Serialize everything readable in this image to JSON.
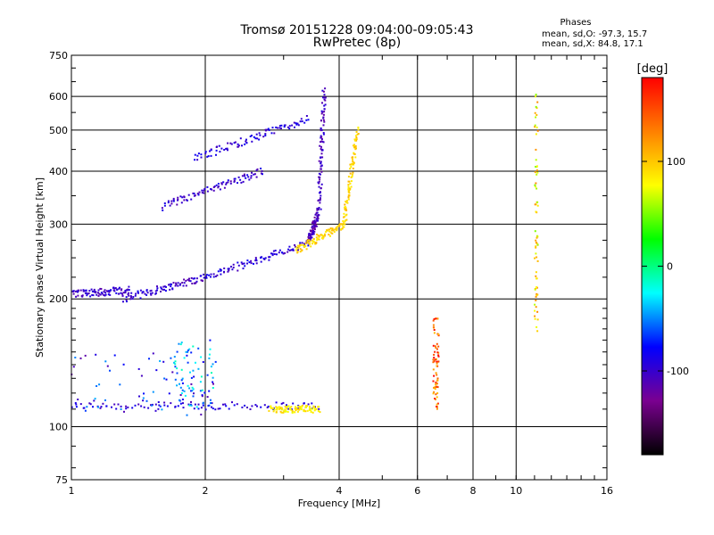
{
  "chart_data": {
    "type": "scatter",
    "title": "Tromsø 20151228 09:04:00-09:05:43",
    "subtitle": "RwPretec (8p)",
    "xlabel": "Frequency [MHz]",
    "ylabel": "Stationary phase Virtual Height [km]",
    "x_scale": "log",
    "y_scale": "log",
    "xlim": [
      1,
      16
    ],
    "ylim": [
      75,
      750
    ],
    "x_ticks": [
      1,
      2,
      4,
      6,
      8,
      10,
      16
    ],
    "x_tick_labels": [
      "1",
      "2",
      "4",
      "6",
      "8",
      "10",
      "16"
    ],
    "y_ticks": [
      75,
      100,
      200,
      300,
      400,
      500,
      600,
      750
    ],
    "y_tick_labels": [
      "75",
      "100",
      "200",
      "300",
      "400",
      "500",
      "600",
      "750"
    ],
    "grid": true,
    "colorbar": {
      "label": "[deg]",
      "range": [
        -180,
        180
      ],
      "ticks": [
        100,
        0,
        -100
      ],
      "tick_labels": [
        "100",
        "0",
        "-100"
      ],
      "colors": [
        "#000000",
        "#7a0090",
        "#0000ff",
        "#00ffff",
        "#00ff00",
        "#ffff00",
        "#ff8000",
        "#ff0000"
      ]
    },
    "phase_stats": {
      "heading": "Phases",
      "o_mode": "mean, sd,O: -97.3, 15.7",
      "x_mode": "mean, sd,X:  84.8, 17.1"
    },
    "traces": [
      {
        "x_range": [
          1.0,
          3.6
        ],
        "h_range": [
          112,
          112
        ],
        "phase": -95
      },
      {
        "x_range": [
          2.8,
          3.6
        ],
        "h_range": [
          110,
          110
        ],
        "phase": 85
      },
      {
        "x_range": [
          1.3,
          2.0
        ],
        "h_range": [
          200,
          225
        ],
        "phase": -100
      },
      {
        "x_range": [
          2.0,
          3.4
        ],
        "h_range": [
          225,
          270
        ],
        "phase": -95
      },
      {
        "x_range": [
          3.4,
          3.6
        ],
        "h_range": [
          270,
          320
        ],
        "phase": -110
      },
      {
        "x_range": [
          3.6,
          3.7
        ],
        "h_range": [
          320,
          620
        ],
        "phase": -105
      },
      {
        "x_range": [
          3.2,
          4.1
        ],
        "h_range": [
          260,
          300
        ],
        "phase": 95
      },
      {
        "x_range": [
          4.1,
          4.4
        ],
        "h_range": [
          300,
          500
        ],
        "phase": 95
      },
      {
        "x_range": [
          1.9,
          3.4
        ],
        "h_range": [
          430,
          530
        ],
        "phase": -95
      },
      {
        "x_range": [
          1.6,
          2.7
        ],
        "h_range": [
          330,
          400
        ],
        "phase": -100
      },
      {
        "x_range": [
          1.0,
          1.35
        ],
        "h_range": [
          205,
          210
        ],
        "phase": -100
      }
    ],
    "scatter_clusters": [
      {
        "x_range": [
          1.0,
          2.2
        ],
        "h_range": [
          105,
          150
        ],
        "phase": -80
      },
      {
        "x_range": [
          1.7,
          2.1
        ],
        "h_range": [
          110,
          160
        ],
        "phase": -50
      },
      {
        "x_range": [
          6.5,
          6.7
        ],
        "h_range": [
          110,
          180
        ],
        "phase": 140
      },
      {
        "x_range": [
          11.0,
          11.2
        ],
        "h_range": [
          165,
          620
        ],
        "phase": 90
      }
    ]
  }
}
